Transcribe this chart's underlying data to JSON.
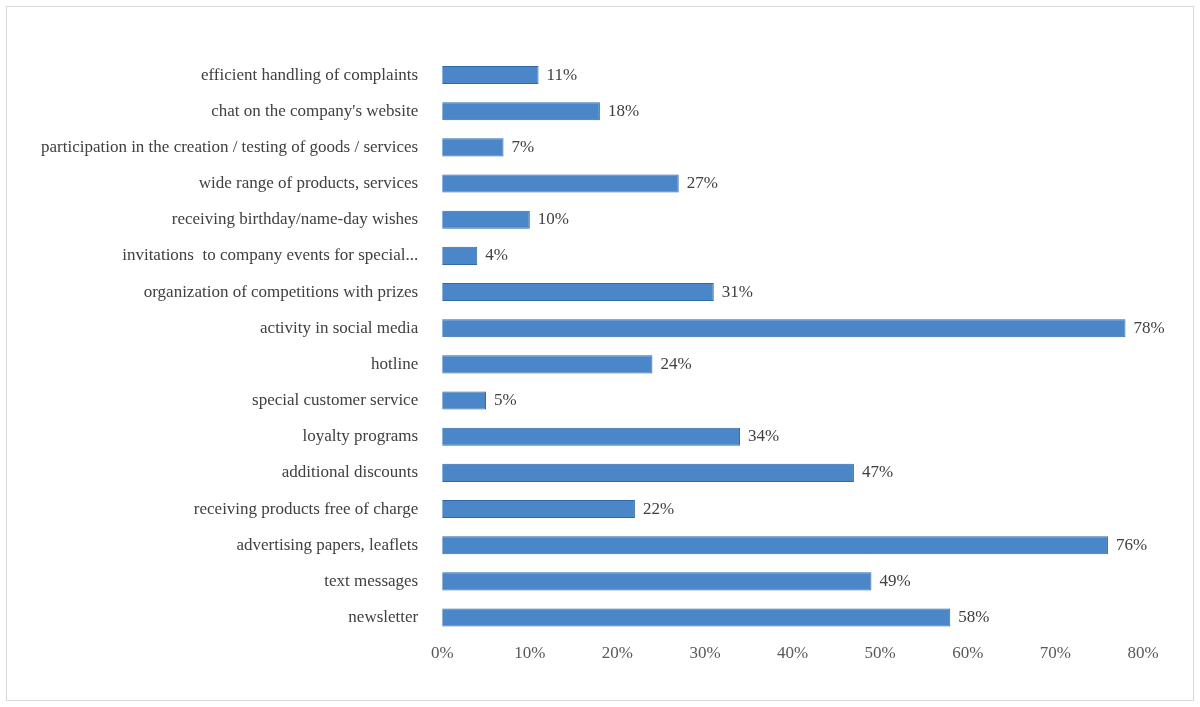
{
  "chart_data": {
    "type": "bar",
    "orientation": "horizontal",
    "categories": [
      "efficient handling of complaints",
      "chat on the company's website",
      "participation in the creation / testing of goods / services",
      "wide range of products, services",
      "receiving birthday/name-day wishes",
      "invitations  to company events for special...",
      "organization of competitions with prizes",
      "activity in social media",
      "hotline",
      "special customer service",
      "loyalty programs",
      "additional discounts",
      "receiving products free of charge",
      "advertising papers, leaflets",
      "text messages",
      "newsletter"
    ],
    "values": [
      11,
      18,
      7,
      27,
      10,
      4,
      31,
      78,
      24,
      5,
      34,
      47,
      22,
      76,
      49,
      58
    ],
    "value_labels": [
      "11%",
      "18%",
      "7%",
      "27%",
      "10%",
      "4%",
      "31%",
      "78%",
      "24%",
      "5%",
      "34%",
      "47%",
      "22%",
      "76%",
      "49%",
      "58%"
    ],
    "color": "#4a86c8",
    "xlim": [
      0,
      80
    ],
    "xticks": [
      {
        "value": 0,
        "label": "0%"
      },
      {
        "value": 10,
        "label": "10%"
      },
      {
        "value": 20,
        "label": "20%"
      },
      {
        "value": 30,
        "label": "30%"
      },
      {
        "value": 40,
        "label": "40%"
      },
      {
        "value": 50,
        "label": "50%"
      },
      {
        "value": 60,
        "label": "60%"
      },
      {
        "value": 70,
        "label": "70%"
      },
      {
        "value": 80,
        "label": "80%"
      }
    ],
    "grid": false,
    "legend": false
  }
}
